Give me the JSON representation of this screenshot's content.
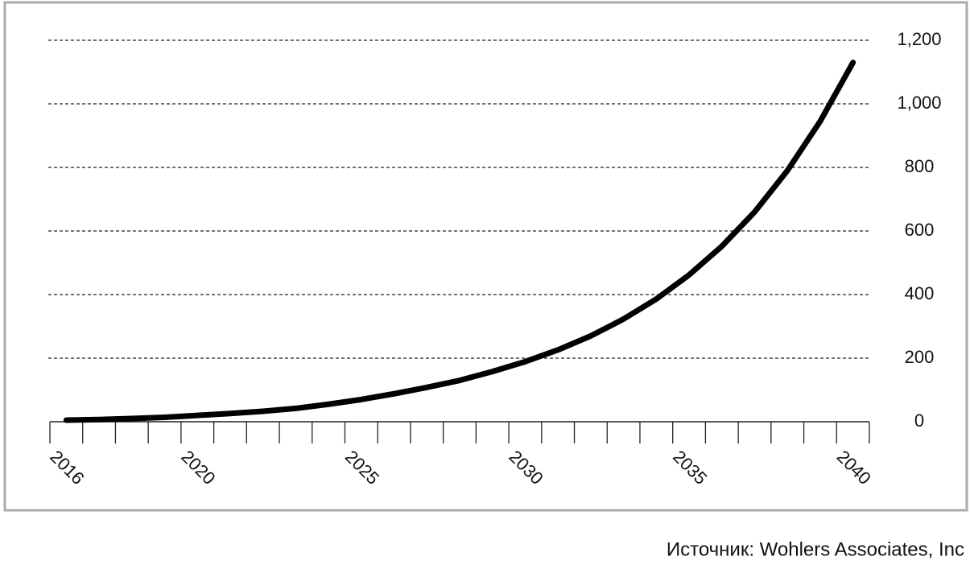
{
  "chart_data": {
    "type": "line",
    "categories": [
      "2016",
      null,
      null,
      null,
      "2020",
      null,
      null,
      null,
      null,
      "2025",
      null,
      null,
      null,
      null,
      "2030",
      null,
      null,
      null,
      null,
      "2035",
      null,
      null,
      null,
      null,
      "2040"
    ],
    "values": [
      5,
      7,
      10,
      14,
      20,
      26,
      33,
      42,
      55,
      70,
      88,
      108,
      130,
      158,
      189,
      226,
      270,
      323,
      386,
      462,
      552,
      660,
      790,
      945,
      1130
    ],
    "color": "#000000",
    "ylim": [
      0,
      1200
    ],
    "yticks": [
      0,
      200,
      400,
      600,
      800,
      {
        "value": 1000,
        "label": "1,000"
      },
      {
        "value": 1200,
        "label": "1,200"
      }
    ],
    "grid": true,
    "source": "Источник: Wohlers Associates, Inc"
  }
}
